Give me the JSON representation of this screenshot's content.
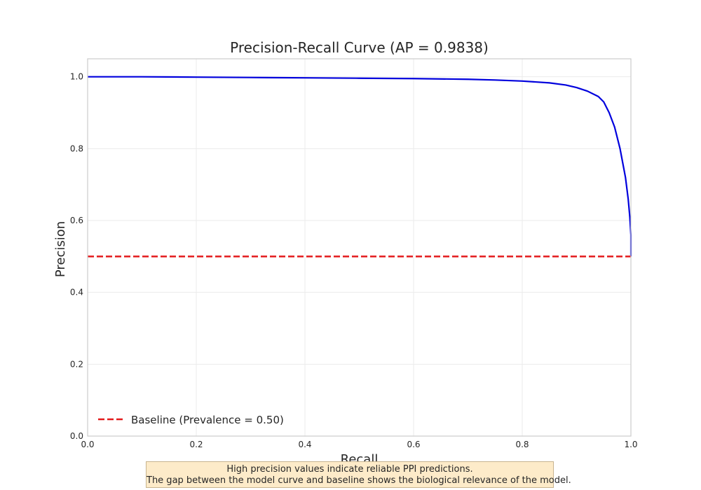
{
  "chart_data": {
    "type": "line",
    "title": "Precision-Recall Curve (AP = 0.9838)",
    "xlabel": "Recall",
    "ylabel": "Precision",
    "xlim": [
      0.0,
      1.0
    ],
    "ylim": [
      0.0,
      1.05
    ],
    "x_ticks": [
      0.0,
      0.2,
      0.4,
      0.6,
      0.8,
      1.0
    ],
    "x_tick_labels": [
      "0.0",
      "0.2",
      "0.4",
      "0.6",
      "0.8",
      "1.0"
    ],
    "y_ticks": [
      0.0,
      0.2,
      0.4,
      0.6,
      0.8,
      1.0
    ],
    "y_tick_labels": [
      "0.0",
      "0.2",
      "0.4",
      "0.6",
      "0.8",
      "1.0"
    ],
    "grid": true,
    "legend_position": "lower-left",
    "series": [
      {
        "color": "#0000dd",
        "style": "solid",
        "x": [
          0.0,
          0.1,
          0.2,
          0.3,
          0.4,
          0.5,
          0.6,
          0.7,
          0.75,
          0.8,
          0.85,
          0.88,
          0.9,
          0.92,
          0.94,
          0.95,
          0.96,
          0.97,
          0.98,
          0.985,
          0.99,
          0.995,
          0.998,
          1.0,
          1.0
        ],
        "y": [
          1.0,
          1.0,
          0.999,
          0.998,
          0.997,
          0.996,
          0.995,
          0.993,
          0.991,
          0.988,
          0.983,
          0.977,
          0.97,
          0.96,
          0.945,
          0.93,
          0.9,
          0.86,
          0.8,
          0.76,
          0.72,
          0.66,
          0.61,
          0.56,
          0.5
        ]
      },
      {
        "name": "Baseline (Prevalence = 0.50)",
        "color": "#e31a1c",
        "style": "dashed",
        "x": [
          0.0,
          1.0
        ],
        "y": [
          0.5,
          0.5
        ]
      }
    ],
    "annotation": {
      "line1": "High precision values indicate reliable PPI predictions.",
      "line2": "The gap between the model curve and baseline shows the biological relevance of the model."
    }
  }
}
